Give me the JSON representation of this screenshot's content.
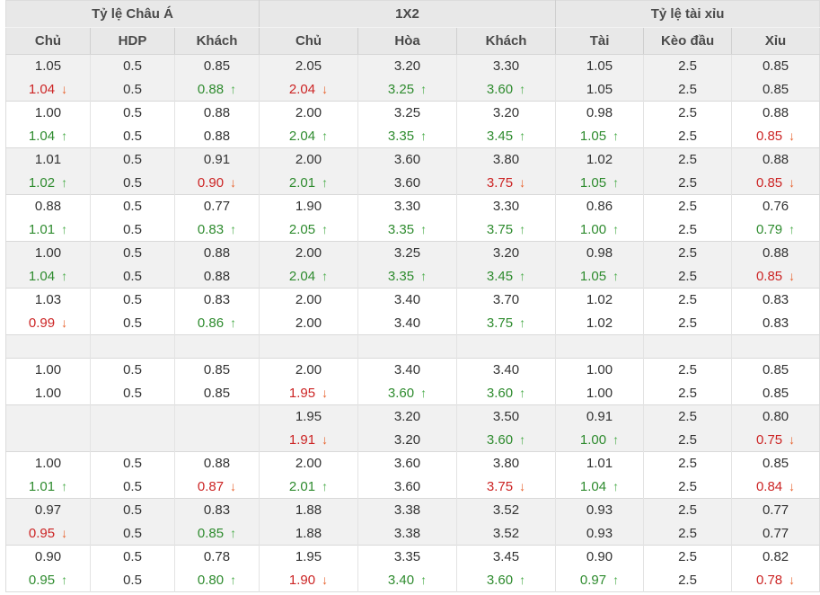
{
  "table_title": "odds-comparison-table",
  "sections": [
    {
      "label": "Tỷ lệ Châu Á",
      "span": 3
    },
    {
      "label": "1X2",
      "span": 3
    },
    {
      "label": "Tỷ lệ tài xỉu",
      "span": 3
    }
  ],
  "columns": [
    "Chủ",
    "HDP",
    "Khách",
    "Chủ",
    "Hòa",
    "Khách",
    "Tài",
    "Kèo đầu",
    "Xỉu"
  ],
  "icons": {
    "up_arrow": "↑",
    "down_arrow": "↓"
  },
  "colors": {
    "green": "#2e8b2e",
    "red": "#cc2424",
    "up_arrow": "#4cae4c",
    "down_arrow": "#e8612c",
    "header_bg": "#e8e8e8",
    "row_alt_bg": "#f1f1f1"
  },
  "rows": [
    {
      "shade": "gray",
      "top": true,
      "cells": [
        {
          "v": "1.05"
        },
        {
          "v": "0.5"
        },
        {
          "v": "0.85"
        },
        {
          "v": "2.05"
        },
        {
          "v": "3.20"
        },
        {
          "v": "3.30"
        },
        {
          "v": "1.05"
        },
        {
          "v": "2.5"
        },
        {
          "v": "0.85"
        }
      ]
    },
    {
      "shade": "gray",
      "top": false,
      "cells": [
        {
          "v": "1.04",
          "trend": "down"
        },
        {
          "v": "0.5"
        },
        {
          "v": "0.88",
          "trend": "up"
        },
        {
          "v": "2.04",
          "trend": "down"
        },
        {
          "v": "3.25",
          "trend": "up"
        },
        {
          "v": "3.60",
          "trend": "up"
        },
        {
          "v": "1.05"
        },
        {
          "v": "2.5"
        },
        {
          "v": "0.85"
        }
      ]
    },
    {
      "shade": "white",
      "top": true,
      "cells": [
        {
          "v": "1.00"
        },
        {
          "v": "0.5"
        },
        {
          "v": "0.88"
        },
        {
          "v": "2.00"
        },
        {
          "v": "3.25"
        },
        {
          "v": "3.20"
        },
        {
          "v": "0.98"
        },
        {
          "v": "2.5"
        },
        {
          "v": "0.88"
        }
      ]
    },
    {
      "shade": "white",
      "top": false,
      "cells": [
        {
          "v": "1.04",
          "trend": "up"
        },
        {
          "v": "0.5"
        },
        {
          "v": "0.88"
        },
        {
          "v": "2.04",
          "trend": "up"
        },
        {
          "v": "3.35",
          "trend": "up"
        },
        {
          "v": "3.45",
          "trend": "up"
        },
        {
          "v": "1.05",
          "trend": "up"
        },
        {
          "v": "2.5"
        },
        {
          "v": "0.85",
          "trend": "down"
        }
      ]
    },
    {
      "shade": "gray",
      "top": true,
      "cells": [
        {
          "v": "1.01"
        },
        {
          "v": "0.5"
        },
        {
          "v": "0.91"
        },
        {
          "v": "2.00"
        },
        {
          "v": "3.60"
        },
        {
          "v": "3.80"
        },
        {
          "v": "1.02"
        },
        {
          "v": "2.5"
        },
        {
          "v": "0.88"
        }
      ]
    },
    {
      "shade": "gray",
      "top": false,
      "cells": [
        {
          "v": "1.02",
          "trend": "up"
        },
        {
          "v": "0.5"
        },
        {
          "v": "0.90",
          "trend": "down"
        },
        {
          "v": "2.01",
          "trend": "up"
        },
        {
          "v": "3.60"
        },
        {
          "v": "3.75",
          "trend": "down"
        },
        {
          "v": "1.05",
          "trend": "up"
        },
        {
          "v": "2.5"
        },
        {
          "v": "0.85",
          "trend": "down"
        }
      ]
    },
    {
      "shade": "white",
      "top": true,
      "cells": [
        {
          "v": "0.88"
        },
        {
          "v": "0.5"
        },
        {
          "v": "0.77"
        },
        {
          "v": "1.90"
        },
        {
          "v": "3.30"
        },
        {
          "v": "3.30"
        },
        {
          "v": "0.86"
        },
        {
          "v": "2.5"
        },
        {
          "v": "0.76"
        }
      ]
    },
    {
      "shade": "white",
      "top": false,
      "cells": [
        {
          "v": "1.01",
          "trend": "up"
        },
        {
          "v": "0.5"
        },
        {
          "v": "0.83",
          "trend": "up"
        },
        {
          "v": "2.05",
          "trend": "up"
        },
        {
          "v": "3.35",
          "trend": "up"
        },
        {
          "v": "3.75",
          "trend": "up"
        },
        {
          "v": "1.00",
          "trend": "up"
        },
        {
          "v": "2.5"
        },
        {
          "v": "0.79",
          "trend": "up"
        }
      ]
    },
    {
      "shade": "gray",
      "top": true,
      "cells": [
        {
          "v": "1.00"
        },
        {
          "v": "0.5"
        },
        {
          "v": "0.88"
        },
        {
          "v": "2.00"
        },
        {
          "v": "3.25"
        },
        {
          "v": "3.20"
        },
        {
          "v": "0.98"
        },
        {
          "v": "2.5"
        },
        {
          "v": "0.88"
        }
      ]
    },
    {
      "shade": "gray",
      "top": false,
      "cells": [
        {
          "v": "1.04",
          "trend": "up"
        },
        {
          "v": "0.5"
        },
        {
          "v": "0.88"
        },
        {
          "v": "2.04",
          "trend": "up"
        },
        {
          "v": "3.35",
          "trend": "up"
        },
        {
          "v": "3.45",
          "trend": "up"
        },
        {
          "v": "1.05",
          "trend": "up"
        },
        {
          "v": "2.5"
        },
        {
          "v": "0.85",
          "trend": "down"
        }
      ]
    },
    {
      "shade": "white",
      "top": true,
      "cells": [
        {
          "v": "1.03"
        },
        {
          "v": "0.5"
        },
        {
          "v": "0.83"
        },
        {
          "v": "2.00"
        },
        {
          "v": "3.40"
        },
        {
          "v": "3.70"
        },
        {
          "v": "1.02"
        },
        {
          "v": "2.5"
        },
        {
          "v": "0.83"
        }
      ]
    },
    {
      "shade": "white",
      "top": false,
      "cells": [
        {
          "v": "0.99",
          "trend": "down"
        },
        {
          "v": "0.5"
        },
        {
          "v": "0.86",
          "trend": "up"
        },
        {
          "v": "2.00"
        },
        {
          "v": "3.40"
        },
        {
          "v": "3.75",
          "trend": "up"
        },
        {
          "v": "1.02"
        },
        {
          "v": "2.5"
        },
        {
          "v": "0.83"
        }
      ]
    },
    {
      "shade": "gray",
      "top": true,
      "empty": true,
      "cells": [
        {
          "v": ""
        },
        {
          "v": ""
        },
        {
          "v": ""
        },
        {
          "v": ""
        },
        {
          "v": ""
        },
        {
          "v": ""
        },
        {
          "v": ""
        },
        {
          "v": ""
        },
        {
          "v": ""
        }
      ]
    },
    {
      "shade": "white",
      "top": true,
      "cells": [
        {
          "v": "1.00"
        },
        {
          "v": "0.5"
        },
        {
          "v": "0.85"
        },
        {
          "v": "2.00"
        },
        {
          "v": "3.40"
        },
        {
          "v": "3.40"
        },
        {
          "v": "1.00"
        },
        {
          "v": "2.5"
        },
        {
          "v": "0.85"
        }
      ]
    },
    {
      "shade": "white",
      "top": false,
      "cells": [
        {
          "v": "1.00"
        },
        {
          "v": "0.5"
        },
        {
          "v": "0.85"
        },
        {
          "v": "1.95",
          "trend": "down"
        },
        {
          "v": "3.60",
          "trend": "up"
        },
        {
          "v": "3.60",
          "trend": "up"
        },
        {
          "v": "1.00"
        },
        {
          "v": "2.5"
        },
        {
          "v": "0.85"
        }
      ]
    },
    {
      "shade": "gray",
      "top": true,
      "cells": [
        {
          "v": ""
        },
        {
          "v": ""
        },
        {
          "v": ""
        },
        {
          "v": "1.95"
        },
        {
          "v": "3.20"
        },
        {
          "v": "3.50"
        },
        {
          "v": "0.91"
        },
        {
          "v": "2.5"
        },
        {
          "v": "0.80"
        }
      ]
    },
    {
      "shade": "gray",
      "top": false,
      "cells": [
        {
          "v": ""
        },
        {
          "v": ""
        },
        {
          "v": ""
        },
        {
          "v": "1.91",
          "trend": "down"
        },
        {
          "v": "3.20"
        },
        {
          "v": "3.60",
          "trend": "up"
        },
        {
          "v": "1.00",
          "trend": "up"
        },
        {
          "v": "2.5"
        },
        {
          "v": "0.75",
          "trend": "down"
        }
      ]
    },
    {
      "shade": "white",
      "top": true,
      "cells": [
        {
          "v": "1.00"
        },
        {
          "v": "0.5"
        },
        {
          "v": "0.88"
        },
        {
          "v": "2.00"
        },
        {
          "v": "3.60"
        },
        {
          "v": "3.80"
        },
        {
          "v": "1.01"
        },
        {
          "v": "2.5"
        },
        {
          "v": "0.85"
        }
      ]
    },
    {
      "shade": "white",
      "top": false,
      "cells": [
        {
          "v": "1.01",
          "trend": "up"
        },
        {
          "v": "0.5"
        },
        {
          "v": "0.87",
          "trend": "down"
        },
        {
          "v": "2.01",
          "trend": "up"
        },
        {
          "v": "3.60"
        },
        {
          "v": "3.75",
          "trend": "down"
        },
        {
          "v": "1.04",
          "trend": "up"
        },
        {
          "v": "2.5"
        },
        {
          "v": "0.84",
          "trend": "down"
        }
      ]
    },
    {
      "shade": "gray",
      "top": true,
      "cells": [
        {
          "v": "0.97"
        },
        {
          "v": "0.5"
        },
        {
          "v": "0.83"
        },
        {
          "v": "1.88"
        },
        {
          "v": "3.38"
        },
        {
          "v": "3.52"
        },
        {
          "v": "0.93"
        },
        {
          "v": "2.5"
        },
        {
          "v": "0.77"
        }
      ]
    },
    {
      "shade": "gray",
      "top": false,
      "cells": [
        {
          "v": "0.95",
          "trend": "down"
        },
        {
          "v": "0.5"
        },
        {
          "v": "0.85",
          "trend": "up"
        },
        {
          "v": "1.88"
        },
        {
          "v": "3.38"
        },
        {
          "v": "3.52"
        },
        {
          "v": "0.93"
        },
        {
          "v": "2.5"
        },
        {
          "v": "0.77"
        }
      ]
    },
    {
      "shade": "white",
      "top": true,
      "cells": [
        {
          "v": "0.90"
        },
        {
          "v": "0.5"
        },
        {
          "v": "0.78"
        },
        {
          "v": "1.95"
        },
        {
          "v": "3.35"
        },
        {
          "v": "3.45"
        },
        {
          "v": "0.90"
        },
        {
          "v": "2.5"
        },
        {
          "v": "0.82"
        }
      ]
    },
    {
      "shade": "white",
      "top": false,
      "cells": [
        {
          "v": "0.95",
          "trend": "up"
        },
        {
          "v": "0.5"
        },
        {
          "v": "0.80",
          "trend": "up"
        },
        {
          "v": "1.90",
          "trend": "down"
        },
        {
          "v": "3.40",
          "trend": "up"
        },
        {
          "v": "3.60",
          "trend": "up"
        },
        {
          "v": "0.97",
          "trend": "up"
        },
        {
          "v": "2.5"
        },
        {
          "v": "0.78",
          "trend": "down"
        }
      ]
    }
  ]
}
